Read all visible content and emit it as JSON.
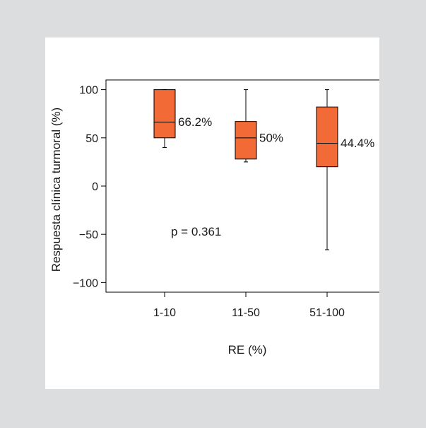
{
  "chart_data": {
    "type": "box",
    "ylabel": "Respuesta clínica turmoral (%)",
    "xlabel": "RE (%)",
    "categories": [
      "1-10",
      "11-50",
      "51-100"
    ],
    "yticks": [
      100,
      50,
      0,
      -50,
      -100
    ],
    "ytick_labels": [
      "100",
      "50",
      "0",
      "−50",
      "−100"
    ],
    "ylim": [
      -110,
      110
    ],
    "boxes": [
      {
        "category": "1-10",
        "min": 40,
        "q1": 50,
        "median": 66.2,
        "q3": 100,
        "max": 100,
        "label": "66.2%"
      },
      {
        "category": "11-50",
        "min": 25,
        "q1": 28,
        "median": 50,
        "q3": 67,
        "max": 100,
        "label": "50%"
      },
      {
        "category": "51-100",
        "min": -66,
        "q1": 20,
        "median": 44.4,
        "q3": 82,
        "max": 100,
        "label": "44.4%"
      }
    ],
    "annotation": "p = 0.361",
    "box_color": "#f26a36",
    "grid": false
  }
}
